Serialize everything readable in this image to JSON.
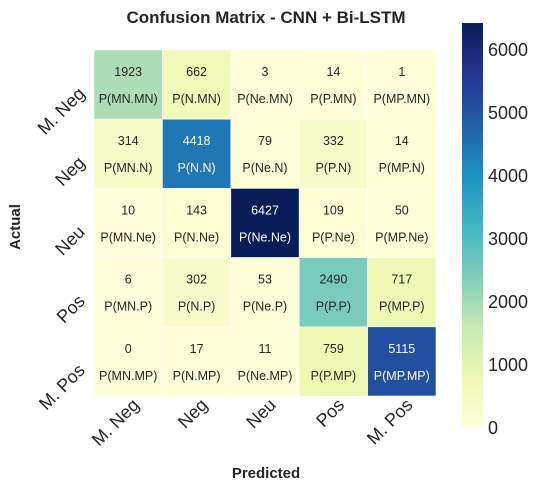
{
  "chart_data": {
    "type": "heatmap",
    "title": "Confusion Matrix - CNN + Bi-LSTM",
    "xlabel": "Predicted",
    "ylabel": "Actual",
    "x_categories": [
      "M. Neg",
      "Neg",
      "Neu",
      "Pos",
      "M. Pos"
    ],
    "y_categories": [
      "M. Neg",
      "Neg",
      "Neu",
      "Pos",
      "M. Pos"
    ],
    "values": [
      [
        1923,
        662,
        3,
        14,
        1
      ],
      [
        314,
        4418,
        79,
        332,
        14
      ],
      [
        10,
        143,
        6427,
        109,
        50
      ],
      [
        6,
        302,
        53,
        2490,
        717
      ],
      [
        0,
        17,
        11,
        759,
        5115
      ]
    ],
    "cell_labels": [
      [
        "P(MN.MN)",
        "P(N.MN)",
        "P(Ne.MN)",
        "P(P.MN)",
        "P(MP.MN)"
      ],
      [
        "P(MN.N)",
        "P(N.N)",
        "P(Ne.N)",
        "P(P.N)",
        "P(MP.N)"
      ],
      [
        "P(MN.Ne)",
        "P(N.Ne)",
        "P(Ne.Ne)",
        "P(P.Ne)",
        "P(MP.Ne)"
      ],
      [
        "P(MN.P)",
        "P(N.P)",
        "P(Ne.P)",
        "P(P.P)",
        "P(MP.P)"
      ],
      [
        "P(MN.MP)",
        "P(N.MP)",
        "P(Ne.MP)",
        "P(P.MP)",
        "P(MP.MP)"
      ]
    ],
    "colormap": "YlGnBu",
    "colorbar_range": [
      0,
      6427
    ],
    "colorbar_ticks": [
      0,
      1000,
      2000,
      3000,
      4000,
      5000,
      6000
    ],
    "grid": false
  }
}
